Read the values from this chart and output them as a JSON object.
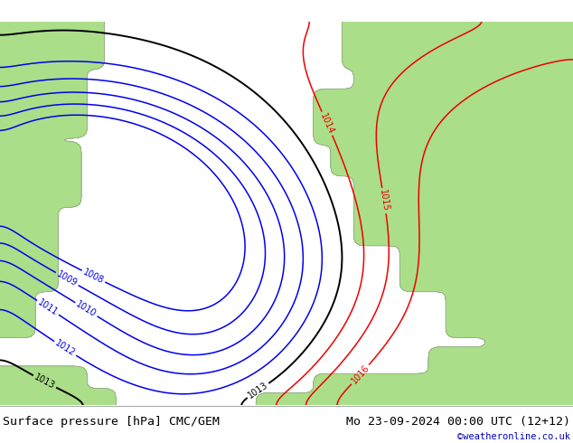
{
  "title_left": "Surface pressure [hPa] CMC/GEM",
  "title_right": "Mo 23-09-2024 00:00 UTC (12+12)",
  "credit": "©weatheronline.co.uk",
  "bg_color": "#c8c8c8",
  "land_color": "#aade88",
  "sea_color": "#c8c8c8",
  "blue_contour_color": "#0000ee",
  "black_contour_color": "#000000",
  "red_contour_color": "#ee0000",
  "title_fontsize": 9.5,
  "label_fontsize": 7,
  "figsize": [
    6.34,
    4.9
  ],
  "dpi": 100,
  "bottom_bar_color": "#dddddd",
  "levels_blue": [
    1008,
    1009,
    1010,
    1011,
    1012
  ],
  "levels_black": [
    1013
  ],
  "levels_red": [
    1014,
    1015,
    1016
  ]
}
